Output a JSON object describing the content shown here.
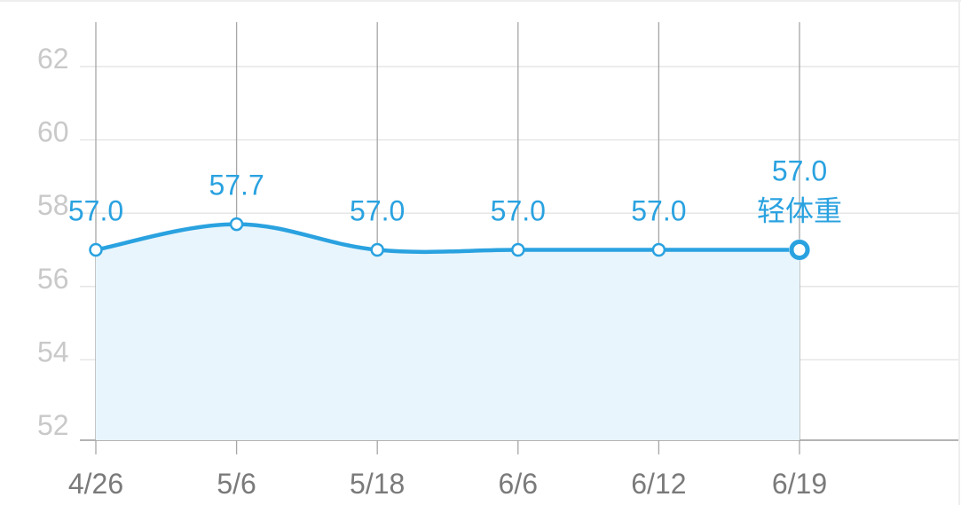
{
  "chart_data": {
    "type": "area",
    "categories": [
      "4/26",
      "5/6",
      "5/18",
      "6/6",
      "6/12",
      "6/19"
    ],
    "values": [
      57.0,
      57.7,
      57.0,
      57.0,
      57.0,
      57.0
    ],
    "value_labels": [
      "57.0",
      "57.7",
      "57.0",
      "57.0",
      "57.0",
      "57.0"
    ],
    "ylim": [
      52,
      63
    ],
    "yticks": [
      52,
      54,
      56,
      58,
      60,
      62
    ],
    "grid": true,
    "last_point_tag": "轻体重",
    "colors": {
      "line": "#2aa2e0",
      "fill": "#e8f5fc",
      "grid_h": "#e6e6e6",
      "grid_v": "#a6a6a6",
      "axis": "#9a9a9a"
    }
  }
}
